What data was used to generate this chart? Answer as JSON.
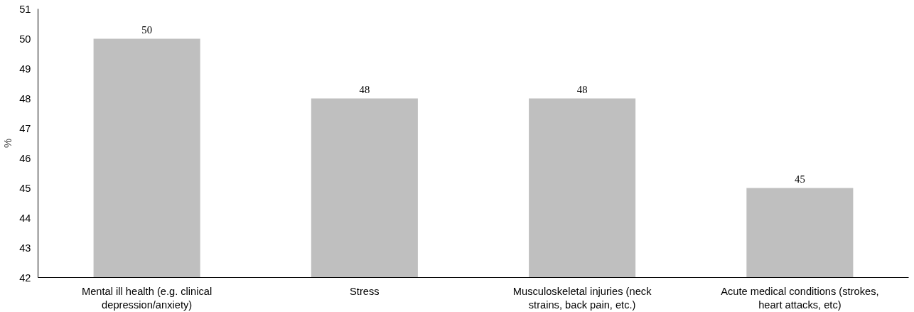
{
  "chart_data": {
    "type": "bar",
    "ylabel": "%",
    "categories": [
      "Mental ill health (e.g. clinical\ndepression/anxiety)",
      "Stress",
      "Musculoskeletal injuries (neck\nstrains, back pain, etc.)",
      "Acute medical conditions (strokes,\nheart attacks, etc)"
    ],
    "values": [
      50,
      48,
      48,
      45
    ],
    "color": "#bfbfbf",
    "ylim": [
      42,
      51
    ],
    "yticks": [
      42,
      43,
      44,
      45,
      46,
      47,
      48,
      49,
      50,
      51
    ],
    "grid": false,
    "data_labels": true
  }
}
